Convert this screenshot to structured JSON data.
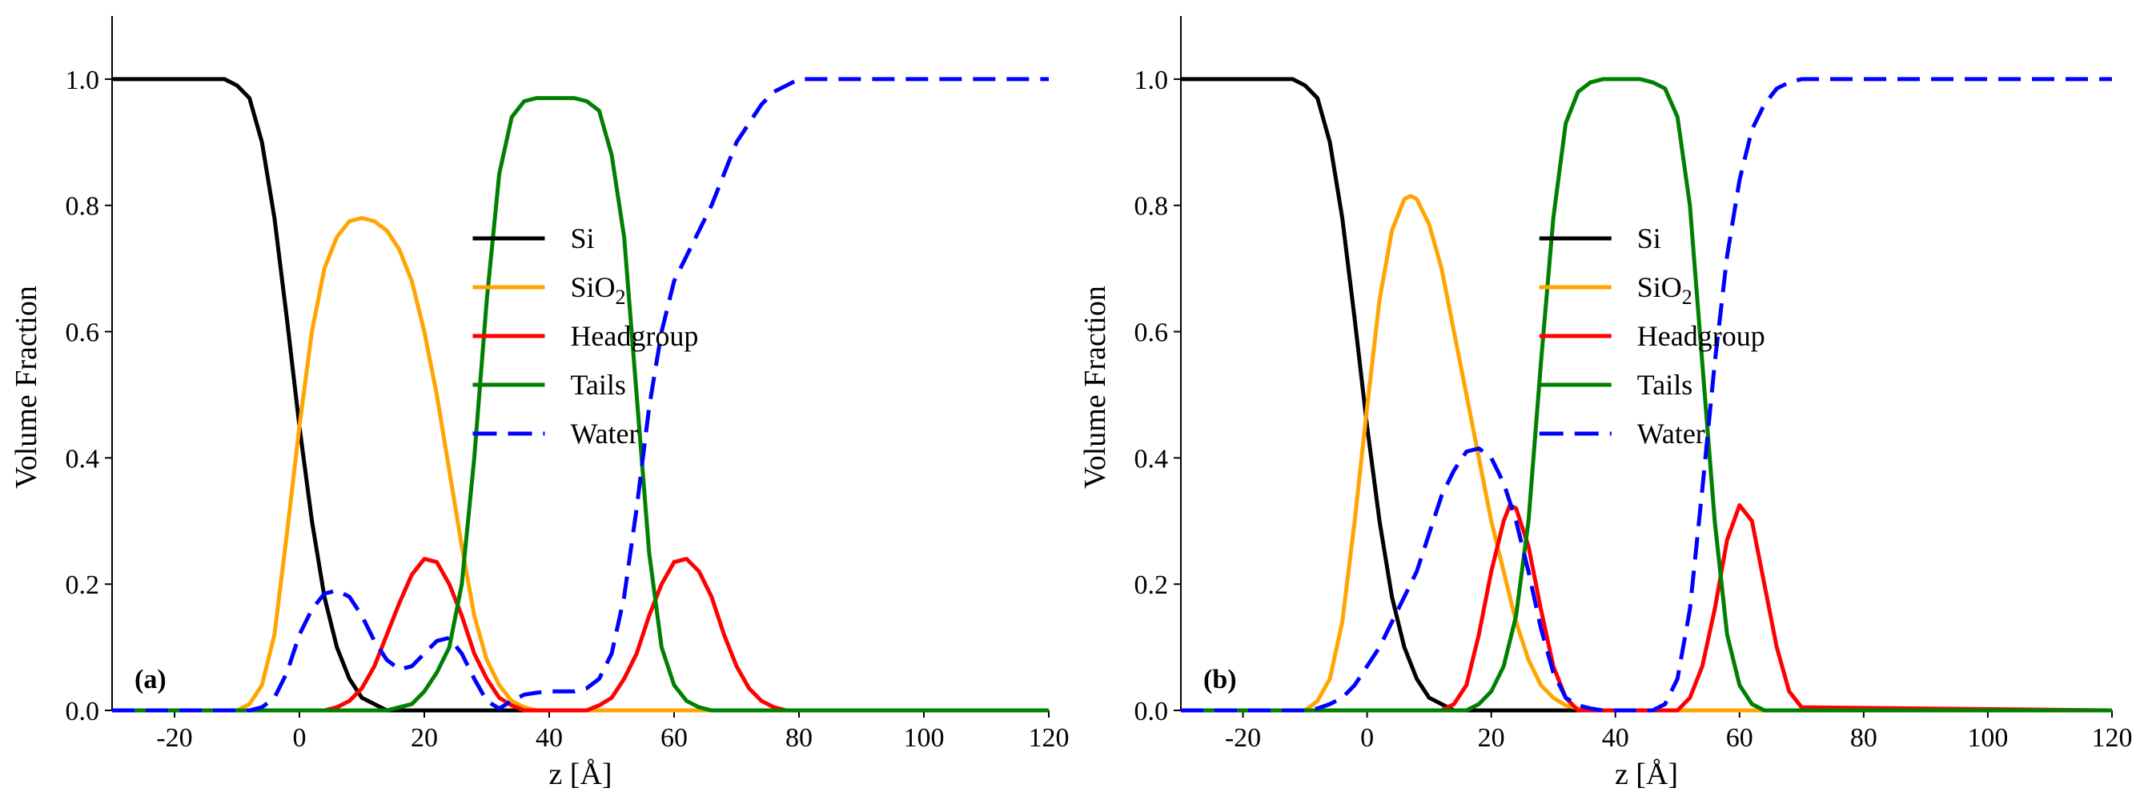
{
  "chart_data": [
    {
      "type": "line",
      "panel_label": "(a)",
      "xlabel": "z [Å]",
      "ylabel": "Volume Fraction",
      "xlim": [
        -30,
        120
      ],
      "ylim": [
        0,
        1.1
      ],
      "xticks": [
        -20,
        0,
        20,
        40,
        60,
        80,
        100,
        120
      ],
      "xtick_labels": [
        "-20",
        "0",
        "20",
        "40",
        "60",
        "80",
        "100",
        "120"
      ],
      "yticks": [
        0,
        0.2,
        0.4,
        0.6,
        0.8,
        1.0
      ],
      "ytick_labels": [
        "0.0",
        "0.2",
        "0.4",
        "0.6",
        "0.8",
        "1.0"
      ],
      "grid": false,
      "legend_position": "right",
      "series": [
        {
          "name": "Si",
          "color": "#000000",
          "dash": "solid",
          "x": [
            -30,
            -12,
            -10,
            -8,
            -6,
            -4,
            -2,
            0,
            2,
            4,
            6,
            8,
            10,
            12,
            14,
            120
          ],
          "y": [
            1.0,
            1.0,
            0.99,
            0.97,
            0.9,
            0.78,
            0.62,
            0.45,
            0.3,
            0.18,
            0.1,
            0.05,
            0.02,
            0.01,
            0.0,
            0.0
          ]
        },
        {
          "name": "SiO2",
          "name_parts": [
            "SiO",
            "2"
          ],
          "color": "#FFA500",
          "dash": "solid",
          "x": [
            -30,
            -10,
            -8,
            -6,
            -4,
            -2,
            0,
            2,
            4,
            6,
            8,
            10,
            12,
            14,
            16,
            18,
            20,
            22,
            24,
            26,
            28,
            30,
            32,
            34,
            36,
            38,
            40,
            120
          ],
          "y": [
            0.0,
            0.0,
            0.01,
            0.04,
            0.12,
            0.28,
            0.45,
            0.6,
            0.7,
            0.75,
            0.775,
            0.78,
            0.775,
            0.76,
            0.73,
            0.68,
            0.6,
            0.5,
            0.38,
            0.26,
            0.15,
            0.08,
            0.04,
            0.015,
            0.005,
            0.0,
            0.0,
            0.0
          ]
        },
        {
          "name": "Headgroup",
          "color": "#FF0000",
          "dash": "solid",
          "x": [
            -30,
            4,
            6,
            8,
            10,
            12,
            14,
            16,
            18,
            20,
            22,
            24,
            26,
            28,
            30,
            32,
            34,
            36,
            46,
            48,
            50,
            52,
            54,
            56,
            58,
            60,
            62,
            64,
            66,
            68,
            70,
            72,
            74,
            76,
            78,
            120
          ],
          "y": [
            0.0,
            0.0,
            0.005,
            0.015,
            0.035,
            0.07,
            0.12,
            0.17,
            0.215,
            0.24,
            0.235,
            0.2,
            0.15,
            0.09,
            0.05,
            0.02,
            0.008,
            0.0,
            0.0,
            0.008,
            0.02,
            0.05,
            0.09,
            0.15,
            0.2,
            0.235,
            0.24,
            0.22,
            0.18,
            0.12,
            0.07,
            0.035,
            0.015,
            0.005,
            0.0,
            0.0
          ]
        },
        {
          "name": "Tails",
          "color": "#008000",
          "dash": "solid",
          "x": [
            -30,
            14,
            16,
            18,
            20,
            22,
            24,
            26,
            28,
            30,
            32,
            34,
            36,
            38,
            40,
            42,
            44,
            46,
            48,
            50,
            52,
            54,
            56,
            58,
            60,
            62,
            64,
            66,
            120
          ],
          "y": [
            0.0,
            0.0,
            0.005,
            0.01,
            0.03,
            0.06,
            0.1,
            0.2,
            0.4,
            0.65,
            0.85,
            0.94,
            0.965,
            0.97,
            0.97,
            0.97,
            0.97,
            0.965,
            0.95,
            0.88,
            0.75,
            0.5,
            0.25,
            0.1,
            0.04,
            0.015,
            0.005,
            0.0,
            0.0
          ]
        },
        {
          "name": "Water",
          "color": "#0000FF",
          "dash": "dashed",
          "x": [
            -30,
            -8,
            -6,
            -4,
            -2,
            0,
            2,
            4,
            6,
            8,
            10,
            12,
            14,
            16,
            18,
            20,
            22,
            24,
            26,
            28,
            30,
            32,
            34,
            36,
            38,
            40,
            42,
            44,
            46,
            48,
            50,
            52,
            54,
            56,
            58,
            60,
            62,
            64,
            66,
            68,
            70,
            72,
            74,
            76,
            78,
            80,
            82,
            84,
            86,
            120
          ],
          "y": [
            0.0,
            0.0,
            0.005,
            0.02,
            0.06,
            0.12,
            0.16,
            0.185,
            0.19,
            0.18,
            0.15,
            0.11,
            0.08,
            0.065,
            0.07,
            0.09,
            0.11,
            0.115,
            0.09,
            0.05,
            0.015,
            0.003,
            0.015,
            0.025,
            0.028,
            0.03,
            0.03,
            0.03,
            0.035,
            0.05,
            0.09,
            0.18,
            0.32,
            0.48,
            0.6,
            0.68,
            0.72,
            0.76,
            0.8,
            0.85,
            0.9,
            0.93,
            0.96,
            0.98,
            0.99,
            1.0,
            1.0,
            1.0,
            1.0,
            1.0
          ]
        }
      ]
    },
    {
      "type": "line",
      "panel_label": "(b)",
      "xlabel": "z [Å]",
      "ylabel": "Volume Fraction",
      "xlim": [
        -30,
        120
      ],
      "ylim": [
        0,
        1.1
      ],
      "xticks": [
        -20,
        0,
        20,
        40,
        60,
        80,
        100,
        120
      ],
      "xtick_labels": [
        "-20",
        "0",
        "20",
        "40",
        "60",
        "80",
        "100",
        "120"
      ],
      "yticks": [
        0,
        0.2,
        0.4,
        0.6,
        0.8,
        1.0
      ],
      "ytick_labels": [
        "0.0",
        "0.2",
        "0.4",
        "0.6",
        "0.8",
        "1.0"
      ],
      "grid": false,
      "legend_position": "right",
      "series": [
        {
          "name": "Si",
          "color": "#000000",
          "dash": "solid",
          "x": [
            -30,
            -12,
            -10,
            -8,
            -6,
            -4,
            -2,
            0,
            2,
            4,
            6,
            8,
            10,
            12,
            14,
            120
          ],
          "y": [
            1.0,
            1.0,
            0.99,
            0.97,
            0.9,
            0.78,
            0.62,
            0.45,
            0.3,
            0.18,
            0.1,
            0.05,
            0.02,
            0.01,
            0.0,
            0.0
          ]
        },
        {
          "name": "SiO2",
          "name_parts": [
            "SiO",
            "2"
          ],
          "color": "#FFA500",
          "dash": "solid",
          "x": [
            -30,
            -10,
            -8,
            -6,
            -4,
            -2,
            0,
            2,
            4,
            6,
            7,
            8,
            10,
            12,
            14,
            16,
            18,
            20,
            22,
            24,
            26,
            28,
            30,
            32,
            34,
            36,
            38,
            40,
            120
          ],
          "y": [
            0.0,
            0.0,
            0.015,
            0.05,
            0.14,
            0.3,
            0.48,
            0.65,
            0.76,
            0.81,
            0.815,
            0.81,
            0.77,
            0.7,
            0.6,
            0.5,
            0.4,
            0.3,
            0.22,
            0.14,
            0.08,
            0.04,
            0.02,
            0.008,
            0.003,
            0.0,
            0.0,
            0.0,
            0.0
          ]
        },
        {
          "name": "Headgroup",
          "color": "#FF0000",
          "dash": "solid",
          "x": [
            -30,
            12,
            14,
            16,
            18,
            20,
            22,
            23,
            24,
            26,
            28,
            30,
            32,
            34,
            50,
            52,
            54,
            56,
            58,
            60,
            62,
            64,
            66,
            68,
            70,
            120
          ],
          "y": [
            0.0,
            0.0,
            0.01,
            0.04,
            0.12,
            0.22,
            0.3,
            0.325,
            0.32,
            0.26,
            0.16,
            0.07,
            0.02,
            0.0,
            0.0,
            0.02,
            0.07,
            0.16,
            0.27,
            0.325,
            0.3,
            0.2,
            0.1,
            0.03,
            0.005,
            0.0
          ]
        },
        {
          "name": "Tails",
          "color": "#008000",
          "dash": "solid",
          "x": [
            -30,
            16,
            18,
            20,
            22,
            24,
            26,
            28,
            30,
            32,
            34,
            36,
            38,
            40,
            42,
            44,
            46,
            48,
            50,
            52,
            54,
            56,
            58,
            60,
            62,
            64,
            120
          ],
          "y": [
            0.0,
            0.0,
            0.01,
            0.03,
            0.07,
            0.15,
            0.3,
            0.55,
            0.78,
            0.93,
            0.98,
            0.995,
            1.0,
            1.0,
            1.0,
            1.0,
            0.995,
            0.985,
            0.94,
            0.8,
            0.55,
            0.3,
            0.12,
            0.04,
            0.01,
            0.0,
            0.0
          ]
        },
        {
          "name": "Water",
          "color": "#0000FF",
          "dash": "dashed",
          "x": [
            -30,
            -10,
            -8,
            -6,
            -4,
            -2,
            0,
            2,
            4,
            6,
            8,
            10,
            12,
            14,
            16,
            18,
            20,
            22,
            24,
            26,
            28,
            30,
            32,
            34,
            36,
            38,
            40,
            46,
            48,
            50,
            52,
            54,
            56,
            58,
            60,
            62,
            64,
            66,
            68,
            70,
            72,
            74,
            76,
            120
          ],
          "y": [
            0.0,
            0.0,
            0.003,
            0.01,
            0.02,
            0.04,
            0.07,
            0.1,
            0.14,
            0.18,
            0.22,
            0.28,
            0.34,
            0.38,
            0.41,
            0.415,
            0.4,
            0.36,
            0.3,
            0.22,
            0.13,
            0.06,
            0.02,
            0.008,
            0.003,
            0.0,
            0.0,
            0.0,
            0.01,
            0.05,
            0.16,
            0.35,
            0.55,
            0.72,
            0.84,
            0.92,
            0.96,
            0.985,
            0.995,
            1.0,
            1.0,
            1.0,
            1.0,
            1.0
          ]
        }
      ]
    }
  ]
}
